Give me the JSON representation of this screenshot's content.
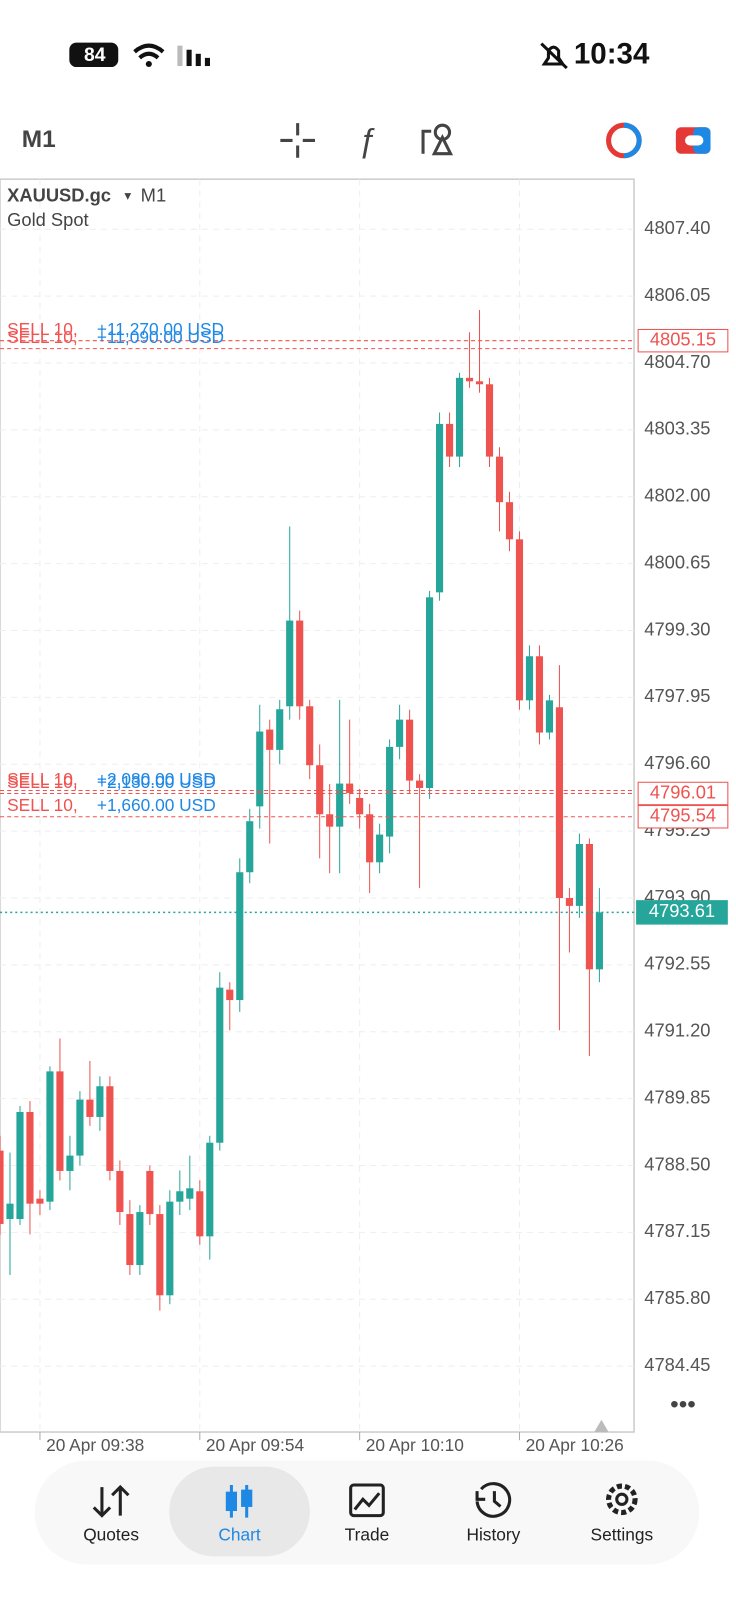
{
  "status_bar": {
    "battery": "84",
    "time": "10:34"
  },
  "toolbar": {
    "timeframe": "M1"
  },
  "chart_data": {
    "type": "candlestick",
    "symbol": "XAUUSD.gc",
    "timeframe": "M1",
    "subtitle": "Gold Spot",
    "up_color": "#26a69a",
    "down_color": "#ef5350",
    "grid": true,
    "categories": [
      null,
      null,
      null,
      null,
      "20 Apr 09:38",
      null,
      null,
      null,
      null,
      null,
      null,
      null,
      null,
      null,
      null,
      null,
      null,
      null,
      null,
      null,
      "20 Apr 09:54",
      null,
      null,
      null,
      null,
      null,
      null,
      null,
      null,
      null,
      null,
      null,
      null,
      null,
      null,
      null,
      "20 Apr 10:10",
      null,
      null,
      null,
      null,
      null,
      null,
      null,
      null,
      null,
      null,
      null,
      null,
      null,
      null,
      null,
      "20 Apr 10:26",
      null,
      null,
      null,
      null,
      null,
      null,
      null,
      null
    ],
    "open": [
      4788.8,
      4787.42,
      4787.42,
      4789.58,
      4787.83,
      4787.77,
      4790.4,
      4788.39,
      4788.7,
      4789.83,
      4789.48,
      4790.1,
      4788.39,
      4787.52,
      4786.49,
      4788.39,
      4787.52,
      4785.88,
      4787.77,
      4787.83,
      4787.98,
      4787.07,
      4788.96,
      4792.05,
      4791.84,
      4794.42,
      4795.75,
      4797.3,
      4796.89,
      4797.77,
      4799.5,
      4797.77,
      4796.58,
      4795.59,
      4795.34,
      4796.21,
      4795.92,
      4795.59,
      4794.62,
      4795.14,
      4796.95,
      4797.5,
      4796.27,
      4796.12,
      4800.07,
      4803.47,
      4802.81,
      4804.4,
      4804.33,
      4804.27,
      4802.81,
      4801.89,
      4801.14,
      4797.89,
      4798.78,
      4797.24,
      4797.75,
      4793.9,
      4793.74,
      4794.99,
      4792.46
    ],
    "high": [
      4789.1,
      4788.76,
      4789.7,
      4789.8,
      4788.0,
      4790.5,
      4791.06,
      4789.1,
      4790.0,
      4790.61,
      4790.3,
      4790.3,
      4788.6,
      4787.8,
      4787.7,
      4788.5,
      4787.7,
      4788.0,
      4788.4,
      4788.7,
      4788.2,
      4789.1,
      4792.4,
      4792.2,
      4794.7,
      4795.7,
      4797.8,
      4797.5,
      4797.9,
      4801.4,
      4799.7,
      4797.9,
      4797.0,
      4796.2,
      4797.9,
      4797.5,
      4796.1,
      4795.8,
      4795.4,
      4797.1,
      4797.8,
      4797.7,
      4796.4,
      4800.1,
      4803.7,
      4803.7,
      4804.5,
      4805.32,
      4805.77,
      4804.4,
      4803.0,
      4802.1,
      4801.3,
      4799.0,
      4799.0,
      4798.0,
      4798.6,
      4794.1,
      4795.2,
      4795.1,
      4794.1
    ],
    "low": [
      4787.1,
      4786.29,
      4787.3,
      4787.11,
      4787.5,
      4787.6,
      4788.2,
      4788.0,
      4788.5,
      4789.3,
      4789.2,
      4788.2,
      4787.3,
      4786.29,
      4786.29,
      4787.3,
      4785.57,
      4785.7,
      4787.5,
      4787.6,
      4786.9,
      4786.6,
      4788.8,
      4791.23,
      4791.6,
      4794.2,
      4795.3,
      4795.0,
      4796.6,
      4797.5,
      4797.5,
      4796.3,
      4794.7,
      4794.4,
      4794.4,
      4795.8,
      4795.3,
      4794.0,
      4794.4,
      4794.8,
      4796.7,
      4796.0,
      4794.1,
      4795.9,
      4799.9,
      4802.6,
      4802.6,
      4804.2,
      4804.1,
      4802.6,
      4801.3,
      4800.9,
      4797.7,
      4797.7,
      4797.0,
      4797.1,
      4791.23,
      4792.8,
      4793.5,
      4790.71,
      4792.2
    ],
    "close": [
      4787.32,
      4787.73,
      4789.58,
      4787.73,
      4787.73,
      4790.4,
      4788.39,
      4788.7,
      4789.83,
      4789.48,
      4790.1,
      4788.39,
      4787.56,
      4786.49,
      4787.56,
      4787.52,
      4785.88,
      4787.77,
      4787.98,
      4788.04,
      4787.07,
      4788.96,
      4792.09,
      4791.84,
      4794.42,
      4795.45,
      4797.26,
      4796.89,
      4797.71,
      4799.5,
      4797.77,
      4796.58,
      4795.59,
      4795.34,
      4796.21,
      4796.02,
      4795.59,
      4794.62,
      4795.18,
      4796.95,
      4797.5,
      4796.27,
      4796.12,
      4799.97,
      4803.47,
      4802.81,
      4804.4,
      4804.33,
      4804.27,
      4802.81,
      4801.89,
      4801.14,
      4797.89,
      4798.78,
      4797.24,
      4797.89,
      4793.9,
      4793.74,
      4794.99,
      4792.46,
      4793.61
    ],
    "ylim": [
      4783.12,
      4808.41
    ],
    "yticks": [
      {
        "value": 4807.4,
        "label": "4807.40"
      },
      4806.05,
      {
        "value": 4804.7,
        "label": "4804.70"
      },
      4803.35,
      {
        "value": 4802.0,
        "label": "4802.00"
      },
      4800.65,
      {
        "value": 4799.3,
        "label": "4799.30"
      },
      4797.95,
      {
        "value": 4796.6,
        "label": "4796.60"
      },
      4795.25,
      {
        "value": 4793.9,
        "label": "4793.90"
      },
      4792.55,
      {
        "value": 4791.2,
        "label": "4791.20"
      },
      4789.85,
      {
        "value": 4788.5,
        "label": "4788.50"
      },
      4787.15,
      {
        "value": 4785.8,
        "label": "4785.80"
      },
      4784.45
    ],
    "orders": [
      {
        "side": "SELL 10,",
        "profit": "+11,270.00 USD",
        "price": 4805.15
      },
      {
        "side": "SELL 10,",
        "profit": "+11,090.00 USD",
        "price": 4804.99
      },
      {
        "side": "SELL 10,",
        "profit": "+2,080.00 USD",
        "price": 4796.07
      },
      {
        "side": "SELL 10,",
        "profit": "+2,130.00 USD",
        "price": 4796.01
      },
      {
        "side": "SELL 10,",
        "profit": "+1,660.00 USD",
        "price": 4795.54
      }
    ],
    "price_labels": [
      4805.15,
      4796.01,
      4795.54
    ],
    "last_price": 4793.61
  },
  "nav": [
    "Quotes",
    "Chart",
    "Trade",
    "History",
    "Settings"
  ]
}
